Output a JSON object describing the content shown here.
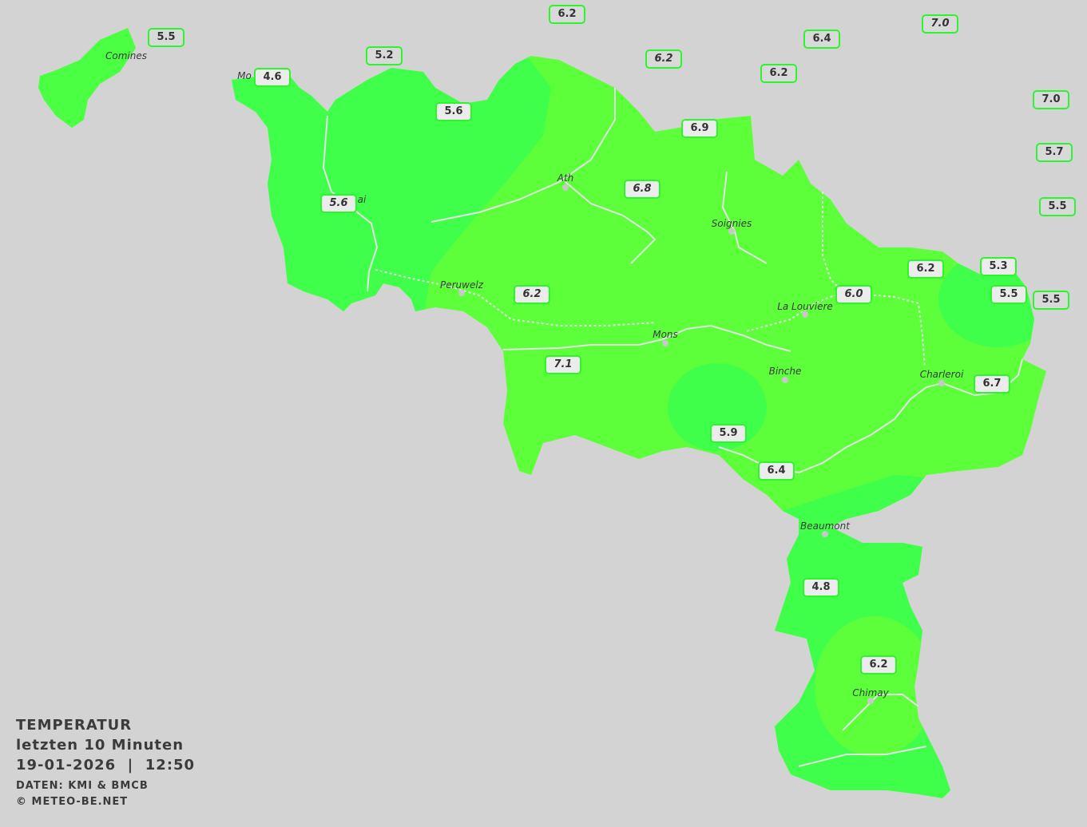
{
  "title": "TEMPERATUR",
  "subtitle": "letzten 10 Minuten",
  "datetime": "19-01-2026  |  12:50",
  "source": "DATEN: KMI & BMCB",
  "copyright": "© METEO-BE.NET",
  "colors": {
    "background": "#d3d3d3",
    "fill_warm": "#5cff3a",
    "fill_cool": "#40ff4a",
    "label_border": "#2df52d",
    "roads": "#e2e2e2"
  },
  "stations": [
    {
      "value": "6.2"
    },
    {
      "value": "5.5"
    },
    {
      "value": "7.0"
    },
    {
      "value": "6.4"
    },
    {
      "value": "5.2"
    },
    {
      "value": "6.2"
    },
    {
      "value": "6.2"
    },
    {
      "value": "4.6"
    },
    {
      "value": "7.0"
    },
    {
      "value": "5.6"
    },
    {
      "value": "6.9"
    },
    {
      "value": "5.7"
    },
    {
      "value": "6.8"
    },
    {
      "value": "5.6"
    },
    {
      "value": "5.5"
    },
    {
      "value": "6.2"
    },
    {
      "value": "5.3"
    },
    {
      "value": "6.0"
    },
    {
      "value": "6.2"
    },
    {
      "value": "5.5"
    },
    {
      "value": "5.5"
    },
    {
      "value": "7.1"
    },
    {
      "value": "6.7"
    },
    {
      "value": "5.9"
    },
    {
      "value": "6.4"
    },
    {
      "value": "4.8"
    },
    {
      "value": "6.2"
    }
  ],
  "cities": [
    "Comines",
    "Mo",
    "ai",
    "Ath",
    "Soignies",
    "Peruwelz",
    "La Louviere",
    "Mons",
    "Binche",
    "Charleroi",
    "Beaumont",
    "Chimay"
  ]
}
